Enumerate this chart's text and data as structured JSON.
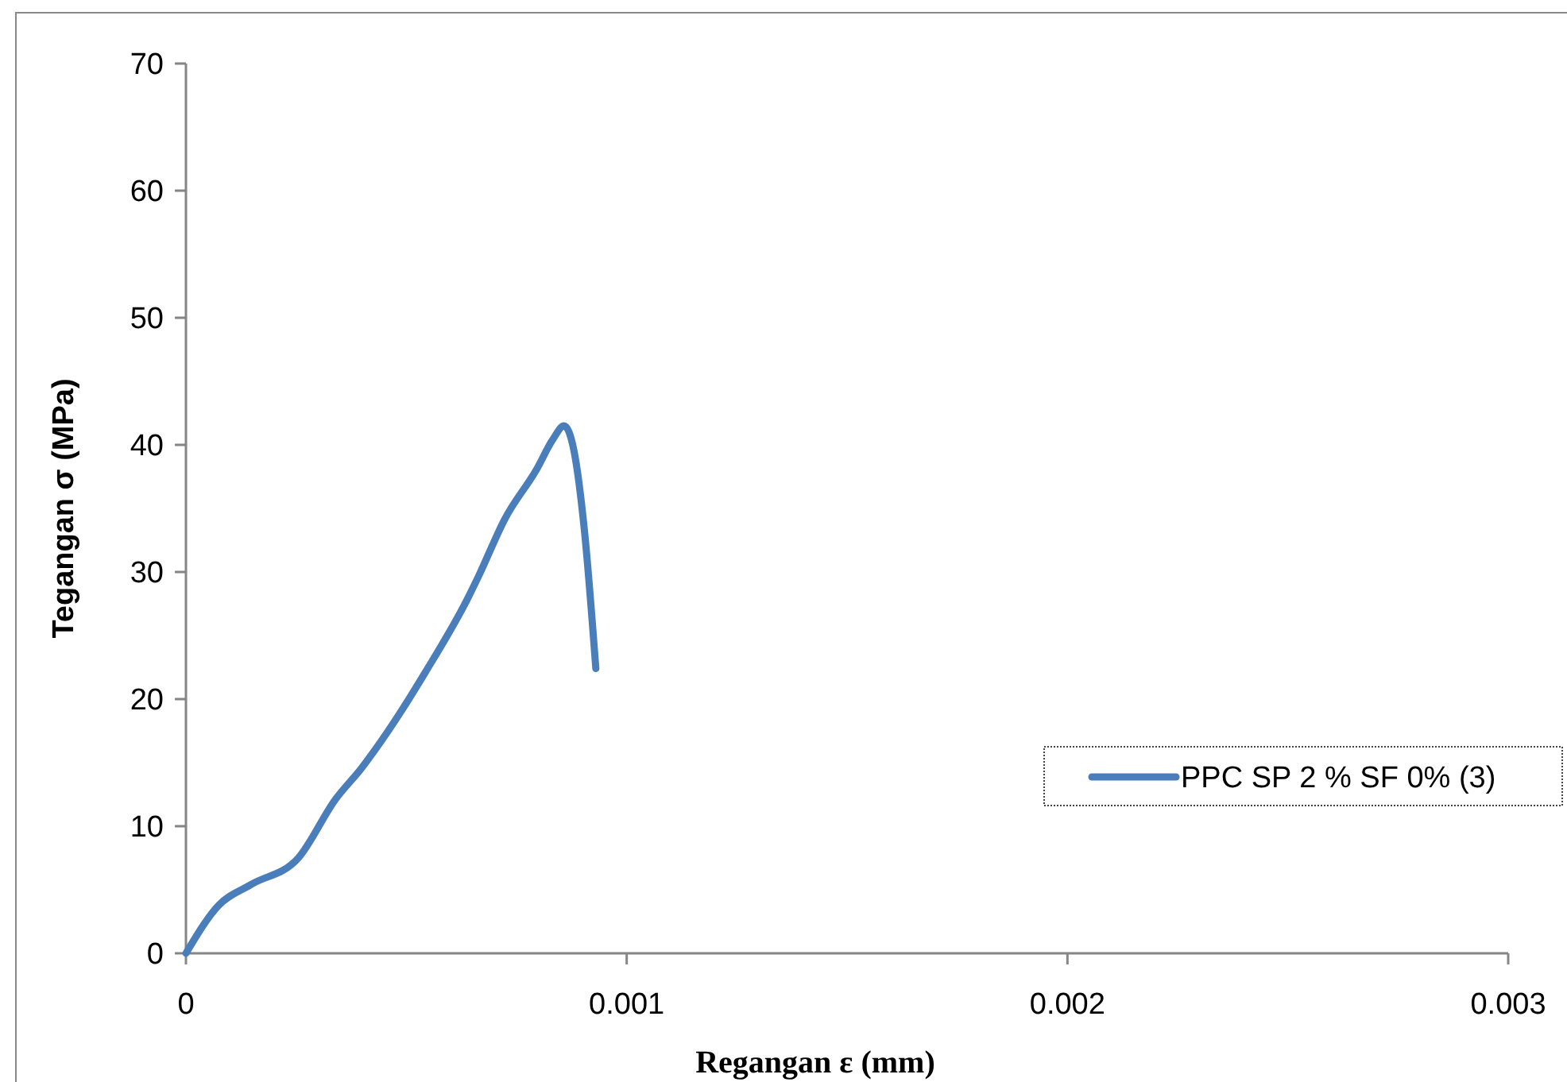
{
  "chart_data": {
    "type": "line",
    "xlabel": "Regangan ε (mm)",
    "ylabel": "Tegangan σ (MPa)",
    "xlim": [
      0,
      0.003
    ],
    "xticks": [
      0,
      0.001,
      0.002,
      0.003
    ],
    "ylim": [
      0,
      70
    ],
    "yticks": [
      0,
      10,
      20,
      30,
      40,
      50,
      60,
      70
    ],
    "grid": false,
    "legend": "right",
    "marker": "none",
    "line_style": "solid",
    "series": [
      {
        "name": "PPC SP 2 % SF 0% (3)",
        "color": "#4a7ebb",
        "x": [
          0,
          7.5e-05,
          0.000147,
          0.000255,
          0.000339,
          0.000399,
          0.000459,
          0.000543,
          0.000639,
          0.000663,
          0.000724,
          0.000796,
          0.000832,
          0.000858,
          0.00088,
          0.000904,
          0.00093
        ],
        "values": [
          0,
          3.8,
          5.4,
          7.5,
          12.1,
          14.6,
          17.5,
          22.1,
          27.9,
          29.6,
          34.2,
          38.1,
          40.4,
          41.5,
          39.6,
          33.3,
          22.4
        ]
      }
    ]
  }
}
